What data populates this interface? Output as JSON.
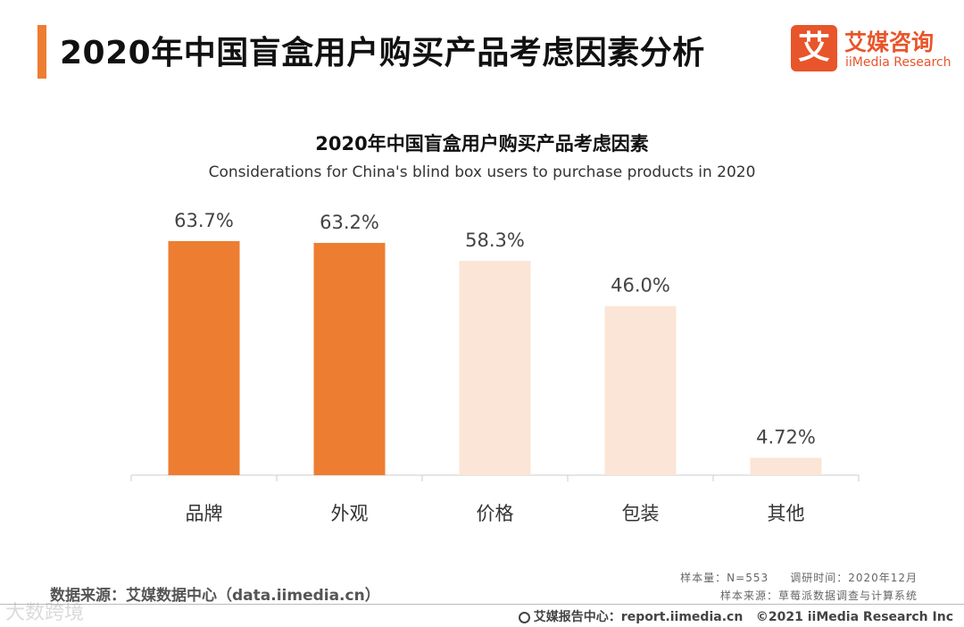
{
  "header": {
    "title": "2020年中国盲盒用户购买产品考虑因素分析",
    "accent_color": "#ed7d31"
  },
  "logo": {
    "mark": "艾",
    "name_cn": "艾媒咨询",
    "name_en": "iiMedia Research",
    "color": "#e8552a"
  },
  "chart_data": {
    "type": "bar",
    "title": "2020年中国盲盒用户购买产品考虑因素",
    "subtitle": "Considerations for China's blind box users to purchase products in 2020",
    "categories": [
      "品牌",
      "外观",
      "价格",
      "包装",
      "其他"
    ],
    "values": [
      63.7,
      63.2,
      58.3,
      46.0,
      4.72
    ],
    "value_labels": [
      "63.7%",
      "63.2%",
      "58.3%",
      "46.0%",
      "4.72%"
    ],
    "highlight": [
      true,
      true,
      false,
      false,
      false
    ],
    "colors": {
      "highlight": "#ed7d31",
      "normal": "#fbe5d6"
    },
    "xlabel": "",
    "ylabel": "",
    "ylim": [
      0,
      70
    ],
    "grid": false,
    "legend": "none"
  },
  "footer": {
    "source": "数据来源：艾媒数据中心（data.iimedia.cn）",
    "sample_size": "样本量：N=553",
    "survey_time": "调研时间：2020年12月",
    "sample_source": "样本来源：草莓派数据调查与计算系统",
    "report_center": "艾媒报告中心：report.iimedia.cn",
    "copyright": "©2021  iiMedia Research  Inc",
    "watermark": "大数跨境"
  }
}
